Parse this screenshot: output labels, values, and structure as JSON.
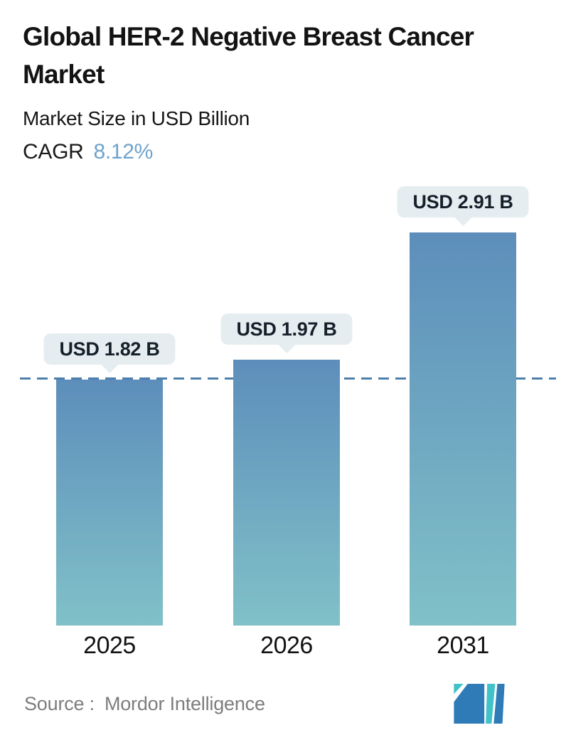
{
  "header": {
    "title": "Global HER-2 Negative Breast Cancer Market",
    "subtitle": "Market Size in USD Billion",
    "cagr_label": "CAGR",
    "cagr_value": "8.12%"
  },
  "chart_data": {
    "type": "bar",
    "categories": [
      "2025",
      "2026",
      "2031"
    ],
    "values": [
      1.82,
      1.97,
      2.91
    ],
    "value_labels": [
      "USD 1.82 B",
      "USD 1.97 B",
      "USD 2.91 B"
    ],
    "title": "Global HER-2 Negative Breast Cancer Market",
    "subtitle": "Market Size in USD Billion",
    "cagr": "8.12%",
    "unit": "USD Billion",
    "ylim": [
      0,
      3.38
    ],
    "grid": false,
    "legend": "none",
    "reference_line": {
      "value": 1.82,
      "style": "dashed",
      "color": "#4d7fab"
    },
    "bar_gradient_top": "#5d8ebb",
    "bar_gradient_bottom": "#80c1c8",
    "bubble_bg": "#e6edf0",
    "bubble_text_color": "#15202a"
  },
  "footer": {
    "source_label": "Source :",
    "source_value": "Mordor Intelligence",
    "logo": "mordor-intelligence-logo",
    "logo_colors": {
      "teal": "#41c2c8",
      "blue": "#2e7bb7"
    }
  }
}
